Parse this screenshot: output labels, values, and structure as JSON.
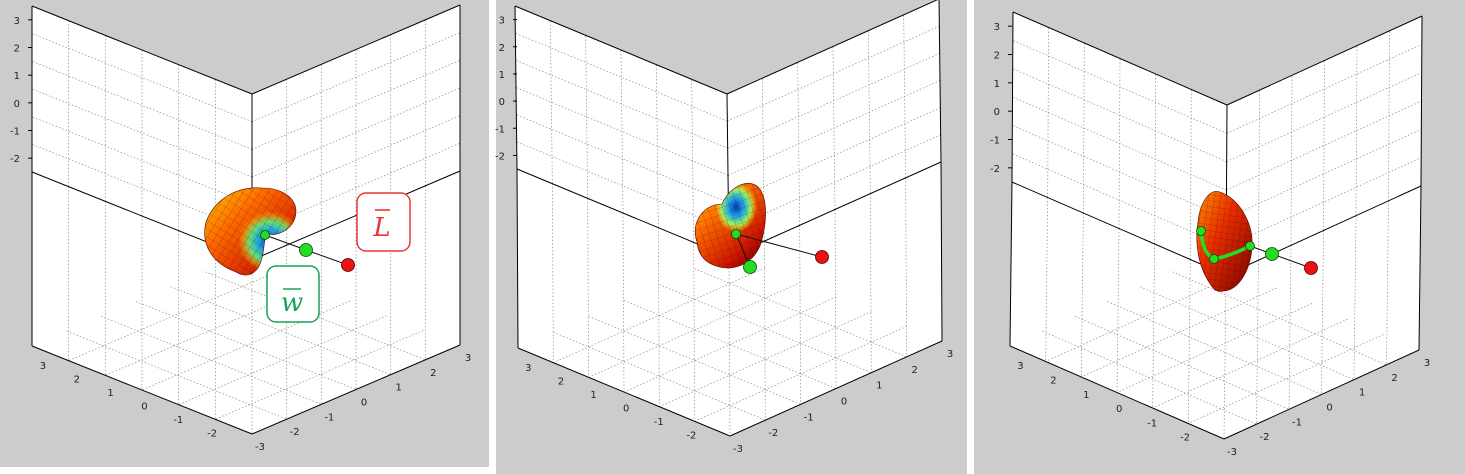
{
  "colors": {
    "figure_background": "#cccccc",
    "axes_background": "#ffffff",
    "grid": "#8a8a8a",
    "endpoint_marker": "#ee1111",
    "path_marker": "#22dd22",
    "label_L_border": "#e53935",
    "label_w_border": "#1aa05a"
  },
  "panels": [
    {
      "ticks": {
        "z": [
          "3",
          "2",
          "1",
          "0",
          "-1",
          "-2"
        ],
        "left": [
          "3",
          "2",
          "1",
          "0",
          "-1",
          "-2"
        ],
        "right": [
          "3",
          "2",
          "1",
          "0",
          "-1",
          "-2",
          "-3"
        ]
      },
      "labels": {
        "L": "L",
        "w": "w"
      }
    },
    {
      "ticks": {
        "z": [
          "3",
          "2",
          "1",
          "0",
          "-1",
          "-2"
        ],
        "left": [
          "3",
          "2",
          "1",
          "0",
          "-1",
          "-2"
        ],
        "right": [
          "3",
          "2",
          "1",
          "0",
          "-1",
          "-2",
          "-3"
        ]
      }
    },
    {
      "ticks": {
        "z": [
          "3",
          "2",
          "1",
          "0",
          "-1",
          "-2"
        ],
        "left": [
          "3",
          "2",
          "1",
          "0",
          "-1",
          "-2"
        ],
        "right": [
          "3",
          "2",
          "1",
          "0",
          "-1",
          "-2",
          "-3"
        ]
      }
    }
  ]
}
